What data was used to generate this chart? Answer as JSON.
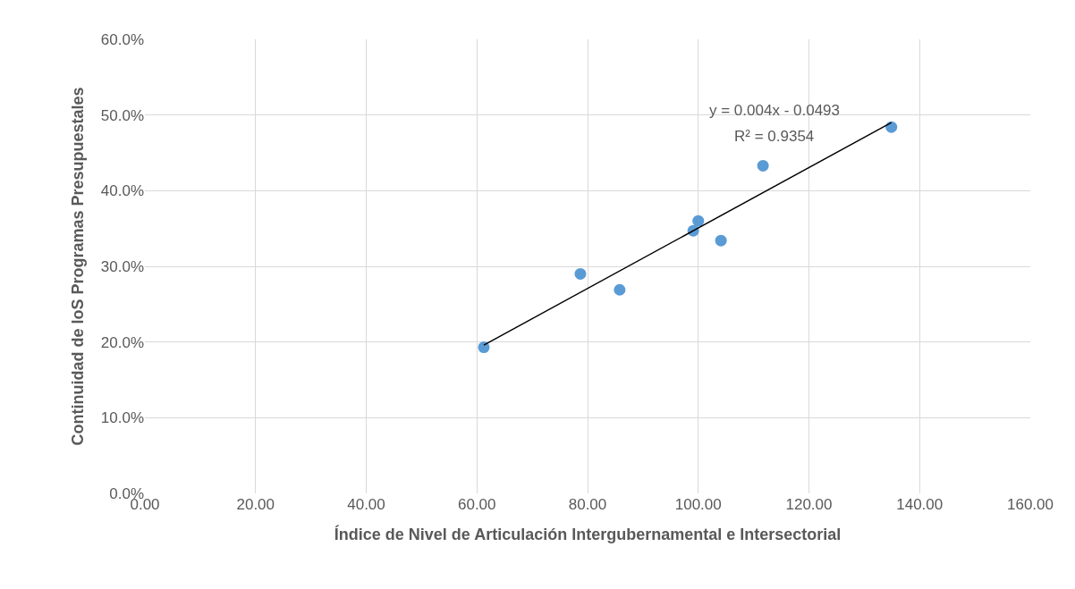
{
  "chart_data": {
    "type": "scatter",
    "xlabel": "Índice de Nivel de Articulación Intergubernamental e Intersectorial",
    "ylabel": "Continuidad de loS Programas Presupuestales",
    "x": [
      61.25,
      78.7,
      85.8,
      99.1,
      100.0,
      104.1,
      111.7,
      134.9
    ],
    "series": [
      {
        "type": "scatter",
        "color": "#5b9bd5",
        "values": [
          19.3,
          29.0,
          26.9,
          34.7,
          36.0,
          33.4,
          43.3,
          48.4
        ]
      },
      {
        "type": "line",
        "color": "#000000",
        "marker": "none",
        "x": [
          61.25,
          134.9
        ],
        "values": [
          19.6,
          49.0
        ]
      }
    ],
    "annotations": [
      "y = 0.004x - 0.0493",
      "R² = 0.9354"
    ],
    "xlim": [
      0,
      160
    ],
    "xticks": [
      {
        "value": 0,
        "label": "0.00"
      },
      {
        "value": 20,
        "label": "20.00"
      },
      {
        "value": 40,
        "label": "40.00"
      },
      {
        "value": 60,
        "label": "60.00"
      },
      {
        "value": 80,
        "label": "80.00"
      },
      {
        "value": 100,
        "label": "100.00"
      },
      {
        "value": 120,
        "label": "120.00"
      },
      {
        "value": 140,
        "label": "140.00"
      },
      {
        "value": 160,
        "label": "160.00"
      }
    ],
    "ylim": [
      0,
      60
    ],
    "yticks": [
      {
        "value": 0,
        "label": "0.0%"
      },
      {
        "value": 10,
        "label": "10.0%"
      },
      {
        "value": 20,
        "label": "20.0%"
      },
      {
        "value": 30,
        "label": "30.0%"
      },
      {
        "value": 40,
        "label": "40.0%"
      },
      {
        "value": 50,
        "label": "50.0%"
      },
      {
        "value": 60,
        "label": "60.0%"
      }
    ],
    "grid": true,
    "marker": "circle"
  }
}
